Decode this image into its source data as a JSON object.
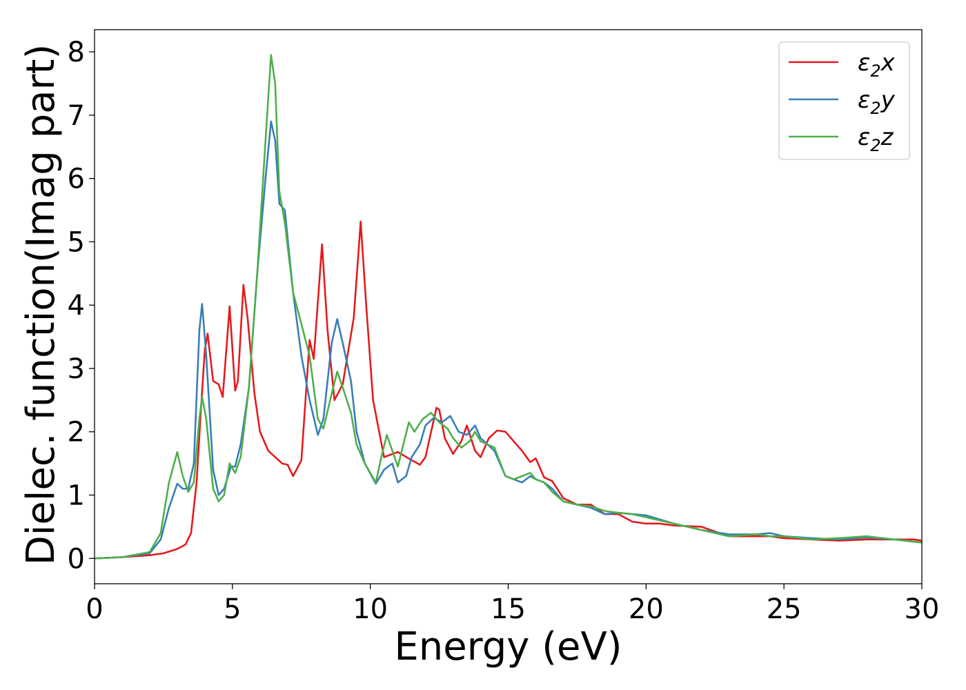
{
  "chart_data": {
    "type": "line",
    "title": "",
    "xlabel": "Energy (eV)",
    "ylabel": "Dielec. function(Imag part)",
    "xlim": [
      0,
      30
    ],
    "ylim": [
      -0.4,
      8.35
    ],
    "xticks": [
      0,
      5,
      10,
      15,
      20,
      25,
      30
    ],
    "yticks": [
      0,
      1,
      2,
      3,
      4,
      5,
      6,
      7,
      8
    ],
    "grid": false,
    "legend_position": "top-right",
    "series": [
      {
        "name": "ε2x",
        "legend": {
          "main": "ε",
          "sub": "2",
          "suffix": "x"
        },
        "color": "#e41a1c",
        "points": [
          [
            0,
            0
          ],
          [
            1,
            0.02
          ],
          [
            2,
            0.05
          ],
          [
            2.5,
            0.08
          ],
          [
            3,
            0.15
          ],
          [
            3.3,
            0.22
          ],
          [
            3.5,
            0.4
          ],
          [
            3.7,
            1.2
          ],
          [
            3.85,
            2.3
          ],
          [
            4.0,
            3.3
          ],
          [
            4.1,
            3.55
          ],
          [
            4.3,
            2.8
          ],
          [
            4.5,
            2.75
          ],
          [
            4.65,
            2.55
          ],
          [
            4.9,
            3.98
          ],
          [
            5.1,
            2.65
          ],
          [
            5.2,
            2.8
          ],
          [
            5.4,
            4.32
          ],
          [
            5.55,
            3.8
          ],
          [
            5.8,
            2.6
          ],
          [
            6.0,
            2.0
          ],
          [
            6.3,
            1.7
          ],
          [
            6.6,
            1.58
          ],
          [
            6.8,
            1.5
          ],
          [
            7.0,
            1.48
          ],
          [
            7.2,
            1.3
          ],
          [
            7.5,
            1.55
          ],
          [
            7.8,
            3.45
          ],
          [
            7.95,
            3.15
          ],
          [
            8.25,
            4.96
          ],
          [
            8.45,
            3.6
          ],
          [
            8.7,
            2.5
          ],
          [
            9.0,
            2.75
          ],
          [
            9.4,
            3.8
          ],
          [
            9.65,
            5.32
          ],
          [
            9.85,
            4.0
          ],
          [
            10.1,
            2.5
          ],
          [
            10.5,
            1.6
          ],
          [
            11.0,
            1.68
          ],
          [
            11.5,
            1.55
          ],
          [
            11.8,
            1.48
          ],
          [
            12.0,
            1.6
          ],
          [
            12.4,
            2.38
          ],
          [
            12.5,
            2.35
          ],
          [
            12.7,
            1.9
          ],
          [
            13.0,
            1.65
          ],
          [
            13.3,
            1.85
          ],
          [
            13.5,
            2.1
          ],
          [
            13.8,
            1.7
          ],
          [
            14.0,
            1.6
          ],
          [
            14.3,
            1.9
          ],
          [
            14.6,
            2.02
          ],
          [
            14.9,
            2.0
          ],
          [
            15.2,
            1.85
          ],
          [
            15.5,
            1.7
          ],
          [
            15.8,
            1.52
          ],
          [
            16.0,
            1.58
          ],
          [
            16.3,
            1.28
          ],
          [
            16.6,
            1.22
          ],
          [
            17.0,
            0.95
          ],
          [
            17.5,
            0.85
          ],
          [
            18.0,
            0.85
          ],
          [
            18.5,
            0.7
          ],
          [
            19.0,
            0.7
          ],
          [
            19.5,
            0.58
          ],
          [
            20.0,
            0.55
          ],
          [
            20.5,
            0.55
          ],
          [
            21.0,
            0.52
          ],
          [
            22.0,
            0.5
          ],
          [
            23.0,
            0.35
          ],
          [
            24.0,
            0.35
          ],
          [
            24.5,
            0.35
          ],
          [
            25.0,
            0.32
          ],
          [
            26.0,
            0.3
          ],
          [
            27.0,
            0.28
          ],
          [
            28.0,
            0.3
          ],
          [
            29.0,
            0.3
          ],
          [
            29.7,
            0.3
          ],
          [
            30.0,
            0.28
          ]
        ]
      },
      {
        "name": "ε2y",
        "legend": {
          "main": "ε",
          "sub": "2",
          "suffix": "y"
        },
        "color": "#377eb8",
        "points": [
          [
            0,
            0
          ],
          [
            1,
            0.02
          ],
          [
            2,
            0.08
          ],
          [
            2.4,
            0.3
          ],
          [
            2.7,
            0.8
          ],
          [
            3.0,
            1.18
          ],
          [
            3.2,
            1.1
          ],
          [
            3.4,
            1.1
          ],
          [
            3.6,
            1.5
          ],
          [
            3.8,
            3.6
          ],
          [
            3.9,
            4.02
          ],
          [
            4.05,
            3.2
          ],
          [
            4.3,
            1.4
          ],
          [
            4.5,
            1.0
          ],
          [
            4.7,
            1.1
          ],
          [
            4.95,
            1.45
          ],
          [
            5.1,
            1.45
          ],
          [
            5.3,
            1.8
          ],
          [
            5.6,
            2.7
          ],
          [
            5.9,
            4.5
          ],
          [
            6.2,
            6.0
          ],
          [
            6.4,
            6.9
          ],
          [
            6.55,
            6.6
          ],
          [
            6.7,
            5.6
          ],
          [
            6.9,
            5.5
          ],
          [
            7.2,
            4.2
          ],
          [
            7.5,
            3.2
          ],
          [
            7.8,
            2.5
          ],
          [
            8.1,
            1.95
          ],
          [
            8.3,
            2.2
          ],
          [
            8.6,
            3.4
          ],
          [
            8.8,
            3.78
          ],
          [
            9.0,
            3.4
          ],
          [
            9.3,
            2.8
          ],
          [
            9.5,
            2.0
          ],
          [
            9.8,
            1.5
          ],
          [
            10.2,
            1.18
          ],
          [
            10.5,
            1.4
          ],
          [
            10.8,
            1.5
          ],
          [
            11.0,
            1.2
          ],
          [
            11.3,
            1.3
          ],
          [
            11.5,
            1.6
          ],
          [
            11.8,
            1.8
          ],
          [
            12.0,
            2.1
          ],
          [
            12.3,
            2.22
          ],
          [
            12.6,
            2.15
          ],
          [
            12.9,
            2.25
          ],
          [
            13.2,
            2.0
          ],
          [
            13.5,
            1.95
          ],
          [
            13.8,
            2.1
          ],
          [
            14.0,
            1.9
          ],
          [
            14.5,
            1.7
          ],
          [
            14.9,
            1.3
          ],
          [
            15.2,
            1.25
          ],
          [
            15.5,
            1.2
          ],
          [
            15.8,
            1.3
          ],
          [
            16.0,
            1.25
          ],
          [
            16.3,
            1.2
          ],
          [
            16.6,
            1.1
          ],
          [
            17.0,
            0.9
          ],
          [
            17.5,
            0.85
          ],
          [
            18.0,
            0.8
          ],
          [
            18.5,
            0.7
          ],
          [
            19.0,
            0.72
          ],
          [
            19.5,
            0.7
          ],
          [
            20.0,
            0.68
          ],
          [
            21.0,
            0.55
          ],
          [
            22.0,
            0.45
          ],
          [
            23.0,
            0.38
          ],
          [
            24.0,
            0.38
          ],
          [
            24.5,
            0.4
          ],
          [
            25.0,
            0.35
          ],
          [
            26.0,
            0.32
          ],
          [
            27.0,
            0.3
          ],
          [
            28.0,
            0.33
          ],
          [
            29.0,
            0.3
          ],
          [
            30.0,
            0.25
          ]
        ]
      },
      {
        "name": "ε2z",
        "legend": {
          "main": "ε",
          "sub": "2",
          "suffix": "z"
        },
        "color": "#4daf4a",
        "points": [
          [
            0,
            0
          ],
          [
            1,
            0.02
          ],
          [
            2,
            0.1
          ],
          [
            2.4,
            0.4
          ],
          [
            2.7,
            1.2
          ],
          [
            3.0,
            1.68
          ],
          [
            3.2,
            1.3
          ],
          [
            3.4,
            1.05
          ],
          [
            3.6,
            1.2
          ],
          [
            3.8,
            2.2
          ],
          [
            3.9,
            2.55
          ],
          [
            4.05,
            2.2
          ],
          [
            4.3,
            1.1
          ],
          [
            4.5,
            0.9
          ],
          [
            4.7,
            1.0
          ],
          [
            4.9,
            1.5
          ],
          [
            5.1,
            1.35
          ],
          [
            5.3,
            1.6
          ],
          [
            5.6,
            2.7
          ],
          [
            5.9,
            4.5
          ],
          [
            6.2,
            6.6
          ],
          [
            6.4,
            7.95
          ],
          [
            6.55,
            7.5
          ],
          [
            6.7,
            5.8
          ],
          [
            6.9,
            5.3
          ],
          [
            7.2,
            4.2
          ],
          [
            7.5,
            3.7
          ],
          [
            7.8,
            3.2
          ],
          [
            8.1,
            2.2
          ],
          [
            8.3,
            2.05
          ],
          [
            8.6,
            2.6
          ],
          [
            8.8,
            2.95
          ],
          [
            9.0,
            2.7
          ],
          [
            9.3,
            2.3
          ],
          [
            9.5,
            1.8
          ],
          [
            9.8,
            1.5
          ],
          [
            10.2,
            1.2
          ],
          [
            10.4,
            1.6
          ],
          [
            10.6,
            1.95
          ],
          [
            10.8,
            1.7
          ],
          [
            11.0,
            1.45
          ],
          [
            11.2,
            1.8
          ],
          [
            11.4,
            2.15
          ],
          [
            11.6,
            2.0
          ],
          [
            11.9,
            2.2
          ],
          [
            12.2,
            2.3
          ],
          [
            12.5,
            2.15
          ],
          [
            12.8,
            2.05
          ],
          [
            13.0,
            1.9
          ],
          [
            13.3,
            1.75
          ],
          [
            13.6,
            1.85
          ],
          [
            13.8,
            2.0
          ],
          [
            14.0,
            1.85
          ],
          [
            14.5,
            1.75
          ],
          [
            14.9,
            1.3
          ],
          [
            15.2,
            1.25
          ],
          [
            15.5,
            1.3
          ],
          [
            15.8,
            1.35
          ],
          [
            16.0,
            1.25
          ],
          [
            16.3,
            1.2
          ],
          [
            16.6,
            1.05
          ],
          [
            17.0,
            0.9
          ],
          [
            17.5,
            0.85
          ],
          [
            18.0,
            0.82
          ],
          [
            18.5,
            0.75
          ],
          [
            19.0,
            0.72
          ],
          [
            19.5,
            0.7
          ],
          [
            20.0,
            0.65
          ],
          [
            21.0,
            0.55
          ],
          [
            22.0,
            0.45
          ],
          [
            23.0,
            0.35
          ],
          [
            24.0,
            0.38
          ],
          [
            24.5,
            0.35
          ],
          [
            25.0,
            0.35
          ],
          [
            26.0,
            0.3
          ],
          [
            27.0,
            0.32
          ],
          [
            28.0,
            0.35
          ],
          [
            29.0,
            0.3
          ],
          [
            30.0,
            0.25
          ]
        ]
      }
    ]
  }
}
